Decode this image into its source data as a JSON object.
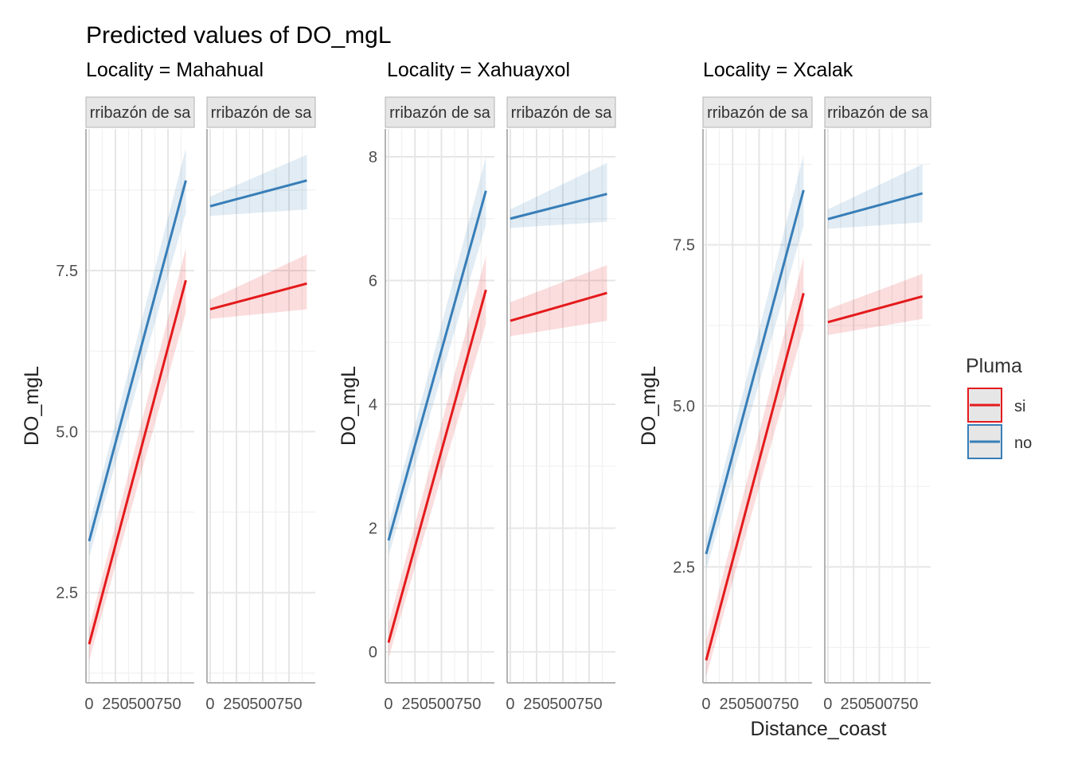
{
  "chart_data": {
    "type": "line",
    "title": "Predicted values of DO_mgL",
    "xlabel": "Distance_coast",
    "ylabel": "DO_mgL",
    "legend": {
      "title": "Pluma",
      "placement": "right",
      "entries": [
        {
          "label": "si",
          "color": "#E41A1C"
        },
        {
          "label": "no",
          "color": "#377EB8"
        }
      ]
    },
    "grid": true,
    "facet_strip_label": "rribazón de sa",
    "x_ticks": [
      0,
      250,
      500,
      750
    ],
    "x_tick_labels": [
      "0",
      "250",
      "500",
      "750"
    ],
    "xlim": [
      -30,
      1000
    ],
    "panels": [
      {
        "locality": "Locality = Mahahual",
        "ylim": [
          1.1,
          9.7
        ],
        "y_ticks": [
          2.5,
          5.0,
          7.5
        ],
        "y_tick_labels": [
          "2.5",
          "5.0",
          "7.5"
        ],
        "facets": [
          {
            "label": "rribazón de sa",
            "series": [
              {
                "name": "si",
                "x": [
                  0,
                  920
                ],
                "y": [
                  1.7,
                  7.35
                ],
                "ci_low": [
                  1.45,
                  6.85
                ],
                "ci_high": [
                  1.95,
                  7.85
                ]
              },
              {
                "name": "no",
                "x": [
                  0,
                  920
                ],
                "y": [
                  3.3,
                  8.9
                ],
                "ci_low": [
                  3.05,
                  8.4
                ],
                "ci_high": [
                  3.55,
                  9.4
                ]
              }
            ]
          },
          {
            "label": "rribazón de sa",
            "series": [
              {
                "name": "si",
                "x": [
                  0,
                  920
                ],
                "y": [
                  6.9,
                  7.3
                ],
                "ci_low": [
                  6.75,
                  6.9
                ],
                "ci_high": [
                  7.05,
                  7.75
                ]
              },
              {
                "name": "no",
                "x": [
                  0,
                  920
                ],
                "y": [
                  8.5,
                  8.9
                ],
                "ci_low": [
                  8.35,
                  8.45
                ],
                "ci_high": [
                  8.65,
                  9.3
                ]
              }
            ]
          }
        ]
      },
      {
        "locality": "Locality = Xahuayxol",
        "ylim": [
          -0.5,
          8.45
        ],
        "y_ticks": [
          0,
          2,
          4,
          6,
          8
        ],
        "y_tick_labels": [
          "0",
          "2",
          "4",
          "6",
          "8"
        ],
        "facets": [
          {
            "label": "rribazón de sa",
            "series": [
              {
                "name": "si",
                "x": [
                  0,
                  920
                ],
                "y": [
                  0.15,
                  5.85
                ],
                "ci_low": [
                  -0.1,
                  5.3
                ],
                "ci_high": [
                  0.45,
                  6.4
                ]
              },
              {
                "name": "no",
                "x": [
                  0,
                  920
                ],
                "y": [
                  1.8,
                  7.45
                ],
                "ci_low": [
                  1.55,
                  6.9
                ],
                "ci_high": [
                  2.05,
                  8.0
                ]
              }
            ]
          },
          {
            "label": "rribazón de sa",
            "series": [
              {
                "name": "si",
                "x": [
                  0,
                  920
                ],
                "y": [
                  5.35,
                  5.8
                ],
                "ci_low": [
                  5.1,
                  5.35
                ],
                "ci_high": [
                  5.65,
                  6.25
                ]
              },
              {
                "name": "no",
                "x": [
                  0,
                  920
                ],
                "y": [
                  7.0,
                  7.4
                ],
                "ci_low": [
                  6.85,
                  6.95
                ],
                "ci_high": [
                  7.15,
                  7.9
                ]
              }
            ]
          }
        ]
      },
      {
        "locality": "Locality = Xcalak",
        "ylim": [
          0.7,
          9.3
        ],
        "y_ticks": [
          2.5,
          5.0,
          7.5
        ],
        "y_tick_labels": [
          "2.5",
          "5.0",
          "7.5"
        ],
        "facets": [
          {
            "label": "rribazón de sa",
            "series": [
              {
                "name": "si",
                "x": [
                  0,
                  920
                ],
                "y": [
                  1.05,
                  6.75
                ],
                "ci_low": [
                  0.8,
                  6.2
                ],
                "ci_high": [
                  1.35,
                  7.3
                ]
              },
              {
                "name": "no",
                "x": [
                  0,
                  920
                ],
                "y": [
                  2.7,
                  8.35
                ],
                "ci_low": [
                  2.45,
                  7.8
                ],
                "ci_high": [
                  2.95,
                  8.9
                ]
              }
            ]
          },
          {
            "label": "rribazón de sa",
            "series": [
              {
                "name": "si",
                "x": [
                  0,
                  920
                ],
                "y": [
                  6.3,
                  6.7
                ],
                "ci_low": [
                  6.1,
                  6.35
                ],
                "ci_high": [
                  6.5,
                  7.05
                ]
              },
              {
                "name": "no",
                "x": [
                  0,
                  920
                ],
                "y": [
                  7.9,
                  8.3
                ],
                "ci_low": [
                  7.75,
                  7.85
                ],
                "ci_high": [
                  8.05,
                  8.75
                ]
              }
            ]
          }
        ]
      }
    ]
  }
}
